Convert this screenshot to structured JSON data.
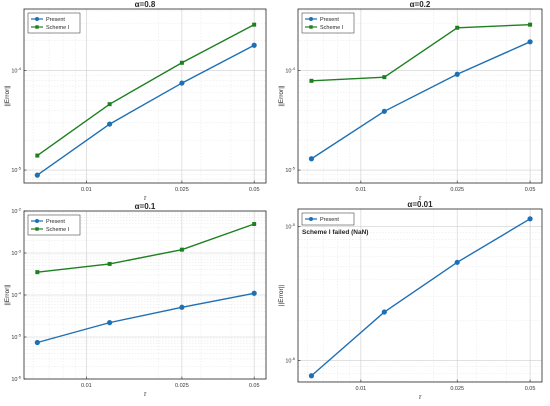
{
  "chart_data": [
    {
      "type": "line",
      "title": "α=0.8",
      "xlabel": "τ",
      "ylabel": "||Error||",
      "xscale": "log",
      "yscale": "log",
      "x_ticks": [
        "0.01",
        "0.025",
        "0.05"
      ],
      "y_ticks": [
        "10-5",
        "10-4"
      ],
      "x": [
        0.00625,
        0.0125,
        0.025,
        0.05
      ],
      "series": [
        {
          "name": "Present",
          "color": "#1f6fb4",
          "marker": "circle",
          "values": [
            8.9e-06,
            2.9e-05,
            7.5e-05,
            0.00018
          ]
        },
        {
          "name": "Scheme I",
          "color": "#1e8020",
          "marker": "square",
          "values": [
            1.4e-05,
            4.6e-05,
            0.00012,
            0.00029
          ]
        }
      ],
      "legend": "top-left",
      "grid": true,
      "note": ""
    },
    {
      "type": "line",
      "title": "α=0.2",
      "xlabel": "τ",
      "ylabel": "||Error||",
      "xscale": "log",
      "yscale": "log",
      "x_ticks": [
        "0.01",
        "0.025",
        "0.05"
      ],
      "y_ticks": [
        "10-5",
        "10-4"
      ],
      "x": [
        0.00625,
        0.0125,
        0.025,
        0.05
      ],
      "series": [
        {
          "name": "Present",
          "color": "#1f6fb4",
          "marker": "circle",
          "values": [
            1.3e-05,
            3.9e-05,
            9.2e-05,
            0.000195
          ]
        },
        {
          "name": "Scheme I",
          "color": "#1e8020",
          "marker": "square",
          "values": [
            7.9e-05,
            8.6e-05,
            0.00027,
            0.00029
          ]
        }
      ],
      "legend": "top-left",
      "grid": true,
      "note": ""
    },
    {
      "type": "line",
      "title": "α=0.1",
      "xlabel": "τ",
      "ylabel": "||Error||",
      "xscale": "log",
      "yscale": "log",
      "x_ticks": [
        "0.01",
        "0.025",
        "0.05"
      ],
      "y_ticks": [
        "10-6",
        "10-5",
        "10-4",
        "10-3",
        "10-2"
      ],
      "x": [
        0.00625,
        0.0125,
        0.025,
        0.05
      ],
      "series": [
        {
          "name": "Present",
          "color": "#1f6fb4",
          "marker": "circle",
          "values": [
            7.4e-06,
            2.2e-05,
            5.1e-05,
            0.00011
          ]
        },
        {
          "name": "Scheme I",
          "color": "#1e8020",
          "marker": "square",
          "values": [
            0.00035,
            0.00055,
            0.0012,
            0.0049
          ]
        }
      ],
      "legend": "top-left",
      "grid": true,
      "note": ""
    },
    {
      "type": "line",
      "title": "α=0.01",
      "xlabel": "τ",
      "ylabel": "||Error||",
      "xscale": "log",
      "yscale": "log",
      "x_ticks": [
        "0.01",
        "0.025",
        "0.05"
      ],
      "y_ticks": [
        "10-6",
        "10-5"
      ],
      "x": [
        0.00625,
        0.0125,
        0.025,
        0.05
      ],
      "series": [
        {
          "name": "Present",
          "color": "#1f6fb4",
          "marker": "circle",
          "values": [
            7.7e-07,
            2.3e-06,
            5.4e-06,
            1.14e-05
          ]
        }
      ],
      "legend": "top-left",
      "grid": true,
      "note": "Scheme I failed (NaN)"
    }
  ]
}
